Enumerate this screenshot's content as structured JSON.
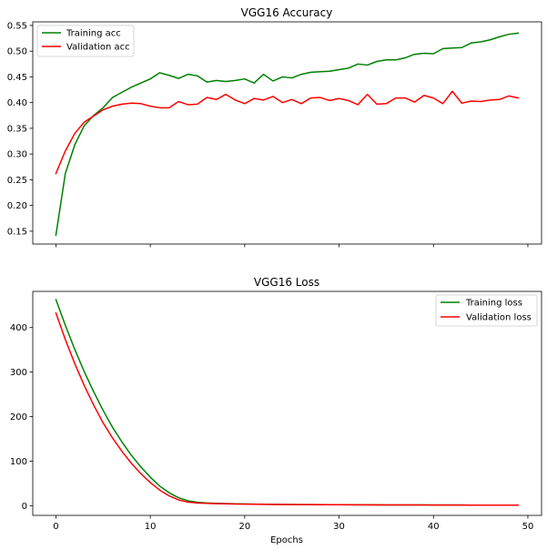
{
  "chart_data": [
    {
      "type": "line",
      "title": "VGG16 Accuracy",
      "xlabel": "",
      "ylabel": "",
      "xlim": [
        -2.45,
        51.45
      ],
      "ylim": [
        0.125,
        0.557
      ],
      "yticks": [
        0.15,
        0.2,
        0.25,
        0.3,
        0.35,
        0.4,
        0.45,
        0.5,
        0.55
      ],
      "ytick_labels": [
        "0.15",
        "0.20",
        "0.25",
        "0.30",
        "0.35",
        "0.40",
        "0.45",
        "0.50",
        "0.55"
      ],
      "xticks": [
        0,
        10,
        20,
        30,
        40,
        50
      ],
      "xtick_labels": [],
      "grid": false,
      "legend_position": "top-left",
      "x": [
        0,
        1,
        2,
        3,
        4,
        5,
        6,
        7,
        8,
        9,
        10,
        11,
        12,
        13,
        14,
        15,
        16,
        17,
        18,
        19,
        20,
        21,
        22,
        23,
        24,
        25,
        26,
        27,
        28,
        29,
        30,
        31,
        32,
        33,
        34,
        35,
        36,
        37,
        38,
        39,
        40,
        41,
        42,
        43,
        44,
        45,
        46,
        47,
        48,
        49
      ],
      "series": [
        {
          "name": "Training acc",
          "color": "#008000",
          "values": [
            0.142,
            0.262,
            0.318,
            0.355,
            0.375,
            0.39,
            0.41,
            0.42,
            0.43,
            0.438,
            0.446,
            0.458,
            0.453,
            0.447,
            0.455,
            0.452,
            0.44,
            0.443,
            0.441,
            0.443,
            0.446,
            0.438,
            0.455,
            0.442,
            0.45,
            0.448,
            0.455,
            0.459,
            0.46,
            0.461,
            0.464,
            0.467,
            0.475,
            0.473,
            0.48,
            0.483,
            0.483,
            0.487,
            0.494,
            0.496,
            0.495,
            0.505,
            0.506,
            0.507,
            0.516,
            0.518,
            0.522,
            0.528,
            0.533,
            0.535
          ]
        },
        {
          "name": "Validation acc",
          "color": "#ff0000",
          "values": [
            0.262,
            0.306,
            0.34,
            0.362,
            0.374,
            0.386,
            0.393,
            0.397,
            0.399,
            0.398,
            0.393,
            0.39,
            0.39,
            0.402,
            0.396,
            0.397,
            0.41,
            0.406,
            0.416,
            0.405,
            0.398,
            0.408,
            0.405,
            0.412,
            0.4,
            0.406,
            0.398,
            0.409,
            0.41,
            0.404,
            0.408,
            0.404,
            0.396,
            0.416,
            0.397,
            0.398,
            0.409,
            0.409,
            0.401,
            0.414,
            0.409,
            0.398,
            0.422,
            0.399,
            0.403,
            0.402,
            0.405,
            0.406,
            0.413,
            0.409
          ]
        }
      ]
    },
    {
      "type": "line",
      "title": "VGG16 Loss",
      "xlabel": "Epochs",
      "ylabel": "",
      "xlim": [
        -2.45,
        51.45
      ],
      "ylim": [
        -21.8,
        481.2
      ],
      "yticks": [
        0,
        100,
        200,
        300,
        400
      ],
      "ytick_labels": [
        "0",
        "100",
        "200",
        "300",
        "400"
      ],
      "xticks": [
        0,
        10,
        20,
        30,
        40,
        50
      ],
      "xtick_labels": [
        "0",
        "10",
        "20",
        "30",
        "40",
        "50"
      ],
      "grid": false,
      "legend_position": "top-right",
      "x": [
        0,
        1,
        2,
        3,
        4,
        5,
        6,
        7,
        8,
        9,
        10,
        11,
        12,
        13,
        14,
        15,
        16,
        17,
        18,
        19,
        20,
        21,
        22,
        23,
        24,
        25,
        26,
        27,
        28,
        29,
        30,
        31,
        32,
        33,
        34,
        35,
        36,
        37,
        38,
        39,
        40,
        41,
        42,
        43,
        44,
        45,
        46,
        47,
        48,
        49
      ],
      "series": [
        {
          "name": "Training loss",
          "color": "#008000",
          "values": [
            463,
            405,
            351,
            301,
            256,
            214,
            176,
            143,
            113,
            87,
            64,
            44,
            29,
            18,
            11,
            7.5,
            6,
            5.3,
            4.8,
            4.3,
            3.9,
            3.5,
            3.2,
            3.0,
            2.8,
            2.7,
            2.6,
            2.5,
            2.4,
            2.3,
            2.2,
            2.1,
            2.0,
            2.0,
            1.9,
            1.8,
            1.8,
            1.7,
            1.6,
            1.6,
            1.5,
            1.5,
            1.4,
            1.4,
            1.3,
            1.3,
            1.2,
            1.2,
            1.1,
            1.1
          ]
        },
        {
          "name": "Validation loss",
          "color": "#ff0000",
          "values": [
            433,
            373,
            319,
            270,
            226,
            186,
            152,
            122,
            95,
            72,
            52,
            35,
            22,
            13,
            8,
            6,
            5.2,
            4.6,
            4.2,
            3.8,
            3.5,
            3.2,
            3.0,
            2.8,
            2.7,
            2.6,
            2.5,
            2.4,
            2.3,
            2.2,
            2.1,
            2.0,
            2.0,
            1.9,
            1.8,
            1.8,
            1.7,
            1.7,
            1.6,
            1.6,
            1.5,
            1.5,
            1.4,
            1.4,
            1.3,
            1.3,
            1.3,
            1.2,
            1.2,
            1.2
          ]
        }
      ]
    }
  ]
}
